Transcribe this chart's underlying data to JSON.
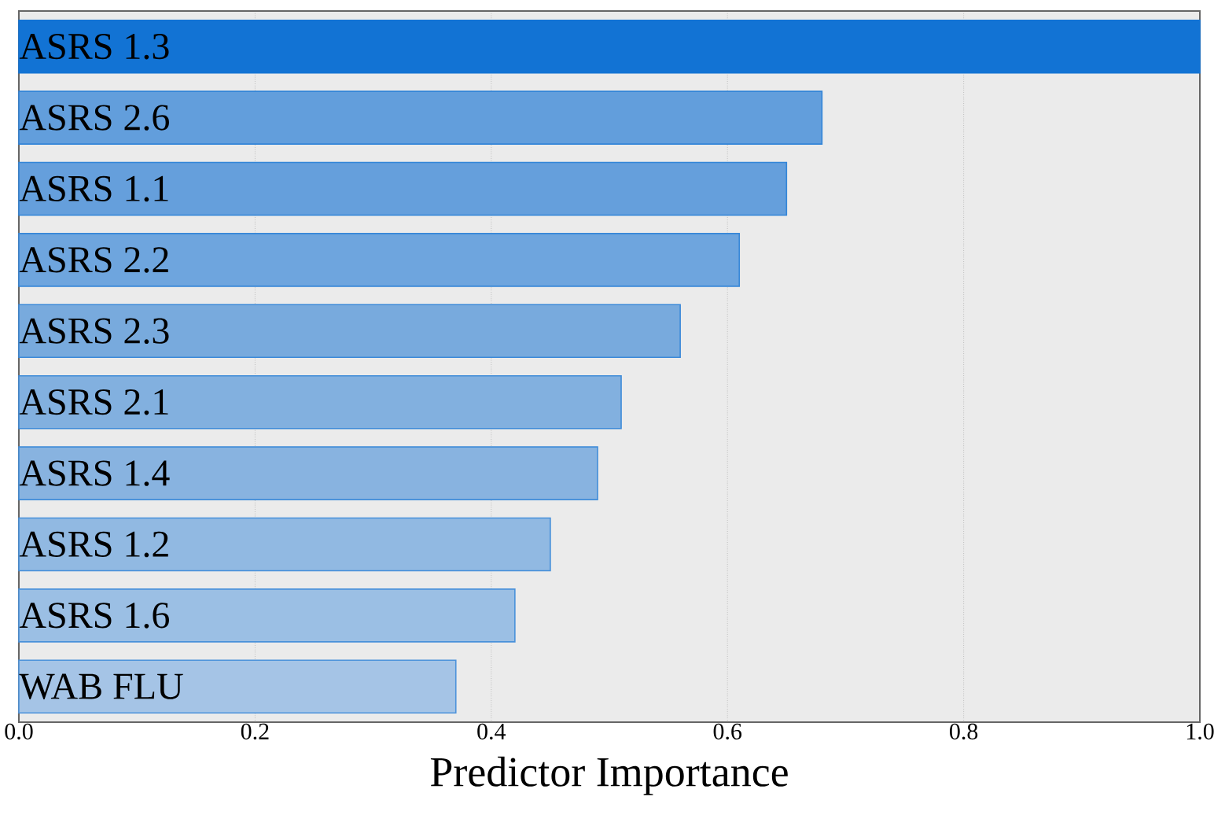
{
  "chart_data": {
    "type": "bar",
    "orientation": "horizontal",
    "xlabel": "Predictor Importance",
    "categories": [
      "ASRS 1.3",
      "ASRS 2.6",
      "ASRS 1.1",
      "ASRS 2.2",
      "ASRS 2.3",
      "ASRS 2.1",
      "ASRS 1.4",
      "ASRS 1.2",
      "ASRS 1.6",
      "WAB FLU"
    ],
    "values": [
      1.0,
      0.68,
      0.65,
      0.61,
      0.56,
      0.51,
      0.49,
      0.45,
      0.42,
      0.37
    ],
    "colors": [
      "#1273d4",
      "#629edc",
      "#659fdc",
      "#6ea5de",
      "#78aadd",
      "#82b0df",
      "#88b3e0",
      "#91b9e2",
      "#9bbfe4",
      "#a5c4e6"
    ],
    "xlim": [
      0,
      1.0
    ],
    "xticks": [
      {
        "value": 0,
        "label": "0.0"
      },
      0.2,
      0.4,
      0.6,
      0.8,
      {
        "value": 1,
        "label": "1.0"
      }
    ],
    "grid": "x"
  }
}
